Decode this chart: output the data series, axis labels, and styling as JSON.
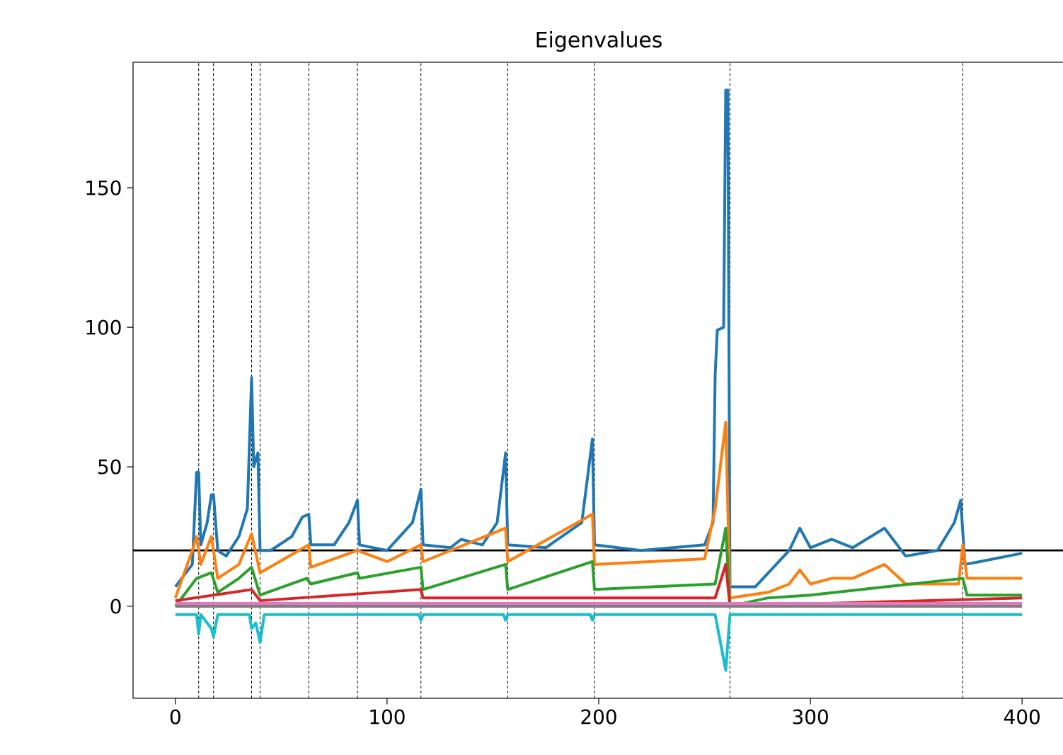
{
  "chart_data": {
    "type": "line",
    "title": "Eigenvalues",
    "xlim": [
      -20,
      420
    ],
    "ylim": [
      -33,
      195
    ],
    "xticks": [
      0,
      100,
      200,
      300,
      400
    ],
    "yticks": [
      0,
      50,
      100,
      150
    ],
    "grid": false,
    "marker": "none",
    "line_style": "solid",
    "ref_lines": [
      {
        "axis": "y",
        "value": 20,
        "color": "#000000",
        "line_style": "solid"
      },
      {
        "axis": "x",
        "value": 11,
        "color": "#000000",
        "line_style": "dashed"
      },
      {
        "axis": "x",
        "value": 18,
        "color": "#000000",
        "line_style": "dashed"
      },
      {
        "axis": "x",
        "value": 36,
        "color": "#000000",
        "line_style": "dashed"
      },
      {
        "axis": "x",
        "value": 40,
        "color": "#000000",
        "line_style": "dashed"
      },
      {
        "axis": "x",
        "value": 63,
        "color": "#000000",
        "line_style": "dashed"
      },
      {
        "axis": "x",
        "value": 86,
        "color": "#000000",
        "line_style": "dashed"
      },
      {
        "axis": "x",
        "value": 116,
        "color": "#000000",
        "line_style": "dashed"
      },
      {
        "axis": "x",
        "value": 157,
        "color": "#000000",
        "line_style": "dashed"
      },
      {
        "axis": "x",
        "value": 198,
        "color": "#000000",
        "line_style": "dashed"
      },
      {
        "axis": "x",
        "value": 262,
        "color": "#000000",
        "line_style": "dashed"
      },
      {
        "axis": "x",
        "value": 372,
        "color": "#000000",
        "line_style": "dashed"
      }
    ],
    "series": [
      {
        "color": "#1f77b4",
        "x": [
          0,
          8,
          10,
          11,
          12,
          15,
          17,
          18,
          20,
          24,
          30,
          34,
          36,
          37,
          39,
          40,
          45,
          55,
          60,
          63,
          64,
          75,
          82,
          86,
          87,
          100,
          112,
          116,
          117,
          130,
          135,
          145,
          152,
          156,
          157,
          175,
          192,
          197,
          198,
          220,
          250,
          254,
          255,
          256,
          259,
          260,
          261,
          262,
          274,
          290,
          295,
          300,
          310,
          320,
          335,
          345,
          360,
          368,
          371,
          373,
          380,
          400
        ],
        "values": [
          7,
          15,
          48,
          48,
          22,
          30,
          40,
          40,
          20,
          18,
          25,
          35,
          82,
          50,
          55,
          20,
          20,
          25,
          32,
          33,
          22,
          22,
          30,
          38,
          22,
          20,
          30,
          42,
          22,
          21,
          24,
          22,
          30,
          55,
          22,
          21,
          30,
          60,
          22,
          20,
          22,
          30,
          83,
          99,
          100,
          185,
          185,
          7,
          7,
          20,
          28,
          21,
          24,
          21,
          28,
          18,
          20,
          30,
          38,
          15,
          16,
          19
        ]
      },
      {
        "color": "#ff7f0e",
        "x": [
          0,
          8,
          10,
          12,
          17,
          20,
          30,
          36,
          40,
          63,
          64,
          86,
          100,
          116,
          117,
          156,
          157,
          197,
          198,
          250,
          255,
          260,
          262,
          280,
          290,
          295,
          300,
          310,
          320,
          335,
          345,
          370,
          372,
          374,
          400
        ],
        "values": [
          3,
          20,
          25,
          15,
          25,
          10,
          15,
          26,
          12,
          22,
          14,
          20,
          16,
          22,
          16,
          28,
          16,
          33,
          15,
          17,
          35,
          66,
          3,
          5,
          8,
          13,
          8,
          10,
          10,
          15,
          8,
          8,
          22,
          10,
          10
        ]
      },
      {
        "color": "#2ca02c",
        "x": [
          0,
          10,
          17,
          20,
          30,
          36,
          40,
          62,
          64,
          86,
          87,
          116,
          117,
          156,
          157,
          197,
          198,
          255,
          260,
          262,
          280,
          300,
          372,
          374,
          400
        ],
        "values": [
          0,
          10,
          12,
          5,
          10,
          14,
          4,
          10,
          8,
          12,
          10,
          14,
          6,
          15,
          6,
          16,
          6,
          8,
          28,
          0,
          3,
          4,
          10,
          4,
          4
        ]
      },
      {
        "color": "#d62728",
        "x": [
          0,
          36,
          40,
          116,
          117,
          255,
          260,
          262,
          400
        ],
        "values": [
          2,
          6,
          2,
          6,
          3,
          3,
          15,
          0,
          3
        ]
      },
      {
        "color": "#e377c2",
        "x": [
          0,
          100,
          200,
          262,
          400
        ],
        "values": [
          1,
          1,
          1,
          1,
          1
        ]
      },
      {
        "color": "#7f7f7f",
        "x": [
          0,
          100,
          200,
          262,
          400
        ],
        "values": [
          0,
          0,
          0,
          0,
          0
        ]
      },
      {
        "color": "#17becf",
        "x": [
          0,
          10,
          11,
          12,
          17,
          18,
          20,
          35,
          36,
          38,
          40,
          42,
          115,
          116,
          117,
          155,
          156,
          157,
          196,
          197,
          198,
          255,
          260,
          262,
          400
        ],
        "values": [
          -3,
          -3,
          -10,
          -3,
          -8,
          -11,
          -3,
          -3,
          -8,
          -6,
          -13,
          -3,
          -3,
          -5,
          -3,
          -3,
          -5,
          -3,
          -3,
          -5,
          -3,
          -3,
          -23,
          -3,
          -3
        ]
      }
    ]
  }
}
